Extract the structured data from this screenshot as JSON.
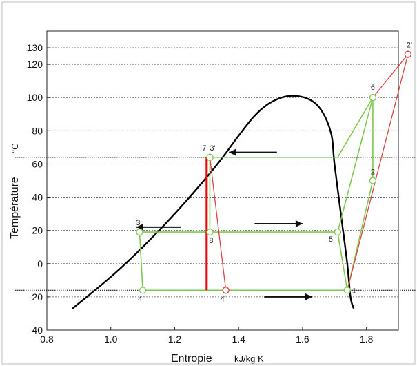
{
  "chart_data": {
    "type": "line",
    "xlabel": "Entropie",
    "xunit": "kJ/kg K",
    "ylabel": "Température",
    "yunit": "°C",
    "xlim": [
      0.8,
      1.9
    ],
    "ylim": [
      -40,
      140
    ],
    "xticks": [
      0.8,
      1.0,
      1.2,
      1.4,
      1.6,
      1.8
    ],
    "yticks": [
      -40,
      -20,
      0,
      20,
      40,
      60,
      80,
      100,
      120
    ],
    "ytick_labels": [
      "-40",
      "-20",
      "0",
      "20",
      "40",
      "60",
      "80",
      "100",
      "120",
      "130"
    ],
    "ytick_label_values": [
      -40,
      -20,
      0,
      20,
      40,
      60,
      80,
      100,
      120,
      130
    ],
    "grid": "horizontal dotted",
    "saturation_curve": {
      "color": "#000000",
      "points": [
        [
          0.88,
          -27
        ],
        [
          1.0,
          -8
        ],
        [
          1.1,
          10
        ],
        [
          1.2,
          30
        ],
        [
          1.3,
          52
        ],
        [
          1.35,
          64
        ],
        [
          1.4,
          77
        ],
        [
          1.45,
          89
        ],
        [
          1.5,
          97
        ],
        [
          1.56,
          101
        ],
        [
          1.62,
          99
        ],
        [
          1.66,
          92
        ],
        [
          1.69,
          78
        ],
        [
          1.7,
          60
        ],
        [
          1.72,
          30
        ],
        [
          1.74,
          0
        ],
        [
          1.75,
          -20
        ],
        [
          1.76,
          -27
        ]
      ]
    },
    "isotherms": [
      {
        "y": 64,
        "color": "#000000"
      },
      {
        "y": -16,
        "color": "#000000"
      }
    ],
    "cycle_green": {
      "color": "#7ec850",
      "segments": [
        [
          [
            1.74,
            -16
          ],
          [
            1.82,
            50
          ]
        ],
        [
          [
            1.82,
            50
          ],
          [
            1.82,
            100
          ]
        ],
        [
          [
            1.82,
            100
          ],
          [
            1.71,
            64
          ]
        ],
        [
          [
            1.71,
            64
          ],
          [
            1.31,
            64
          ]
        ],
        [
          [
            1.82,
            100
          ],
          [
            1.71,
            19
          ]
        ],
        [
          [
            1.71,
            19
          ],
          [
            1.09,
            19
          ]
        ],
        [
          [
            1.09,
            19
          ],
          [
            1.1,
            -16
          ]
        ],
        [
          [
            1.1,
            -16
          ],
          [
            1.74,
            -16
          ]
        ],
        [
          [
            1.71,
            19
          ],
          [
            1.74,
            -16
          ]
        ],
        [
          [
            1.31,
            64
          ],
          [
            1.31,
            19
          ]
        ]
      ]
    },
    "cycle_red": {
      "color": "#e04040",
      "segments": [
        [
          [
            1.74,
            -16
          ],
          [
            1.93,
            126
          ]
        ],
        [
          [
            1.93,
            126
          ],
          [
            1.82,
            100
          ]
        ],
        [
          [
            1.31,
            64
          ],
          [
            1.36,
            -16
          ]
        ]
      ]
    },
    "red_vertical": {
      "x": 1.3,
      "y_from": -16,
      "y_to": 64,
      "color": "#ee0000"
    },
    "points": [
      {
        "label": "1",
        "x": 1.74,
        "y": -16,
        "color": "#7ec850"
      },
      {
        "label": "2",
        "x": 1.82,
        "y": 50,
        "color": "#7ec850"
      },
      {
        "label": "2'",
        "x": 1.93,
        "y": 126,
        "color": "#e04040"
      },
      {
        "label": "3",
        "x": 1.09,
        "y": 19,
        "color": "#7ec850"
      },
      {
        "label": "3'",
        "x": 1.31,
        "y": 64,
        "color": "#7ec850"
      },
      {
        "label": "4",
        "x": 1.1,
        "y": -16,
        "color": "#7ec850"
      },
      {
        "label": "4'",
        "x": 1.36,
        "y": -16,
        "color": "#e04040"
      },
      {
        "label": "5",
        "x": 1.71,
        "y": 19,
        "color": "#7ec850"
      },
      {
        "label": "6",
        "x": 1.82,
        "y": 100,
        "color": "#7ec850"
      },
      {
        "label": "7",
        "x": 1.31,
        "y": 64,
        "color": "#7ec850"
      },
      {
        "label": "8",
        "x": 1.31,
        "y": 19,
        "color": "#7ec850"
      }
    ],
    "arrows": [
      {
        "direction": "left",
        "x_from": 1.52,
        "x_to": 1.37,
        "y": 67
      },
      {
        "direction": "left",
        "x_from": 1.22,
        "x_to": 1.08,
        "y": 22
      },
      {
        "direction": "right",
        "x_from": 1.45,
        "x_to": 1.6,
        "y": 24
      },
      {
        "direction": "right",
        "x_from": 1.48,
        "x_to": 1.63,
        "y": -20
      }
    ]
  }
}
